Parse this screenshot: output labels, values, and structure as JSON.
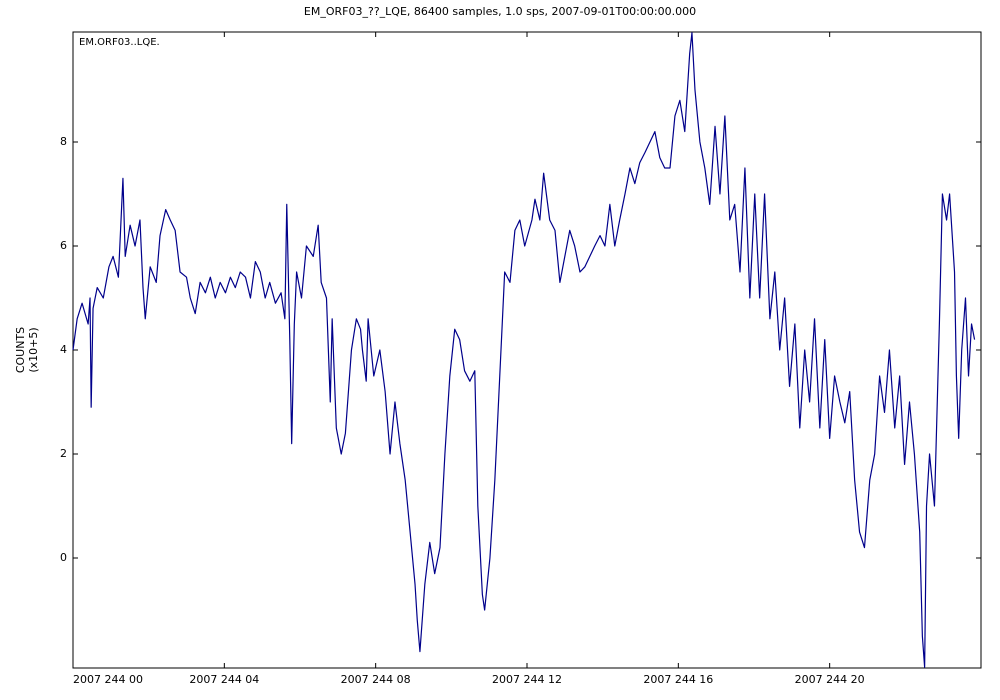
{
  "chart_data": {
    "type": "line",
    "title": "EM_ORF03_??_LQE, 86400 samples, 1.0 sps, 2007-09-01T00:00:00.000",
    "annotation": "EM.ORF03..LQE.",
    "ylabel": "COUNTS",
    "ylabel_unit": "(x10+5)",
    "color": "#00008b",
    "xlim": [
      0,
      24
    ],
    "ylim": [
      -2.115,
      10.115
    ],
    "yticks": [
      0,
      2,
      4,
      6,
      8
    ],
    "xticks": [
      {
        "value": 0,
        "label": "2007 244 00"
      },
      {
        "value": 4,
        "label": "2007 244 04"
      },
      {
        "value": 8,
        "label": "2007 244 08"
      },
      {
        "value": 12,
        "label": "2007 244 12"
      },
      {
        "value": 16,
        "label": "2007 244 16"
      },
      {
        "value": 20,
        "label": "2007 244 20"
      }
    ],
    "x": [
      0.0,
      0.11,
      0.24,
      0.4,
      0.45,
      0.48,
      0.53,
      0.64,
      0.8,
      0.95,
      1.06,
      1.2,
      1.32,
      1.38,
      1.51,
      1.64,
      1.77,
      1.85,
      1.91,
      2.04,
      2.2,
      2.3,
      2.45,
      2.57,
      2.7,
      2.83,
      3.0,
      3.1,
      3.23,
      3.36,
      3.5,
      3.63,
      3.76,
      3.89,
      4.03,
      4.16,
      4.29,
      4.42,
      4.56,
      4.69,
      4.82,
      4.95,
      5.08,
      5.2,
      5.35,
      5.5,
      5.6,
      5.65,
      5.73,
      5.78,
      5.85,
      5.91,
      6.04,
      6.17,
      6.35,
      6.48,
      6.56,
      6.7,
      6.8,
      6.85,
      6.96,
      7.09,
      7.2,
      7.36,
      7.49,
      7.6,
      7.65,
      7.75,
      7.8,
      7.95,
      8.11,
      8.25,
      8.38,
      8.51,
      8.64,
      8.78,
      8.91,
      9.04,
      9.1,
      9.17,
      9.3,
      9.43,
      9.56,
      9.7,
      9.83,
      9.96,
      10.09,
      10.22,
      10.35,
      10.49,
      10.62,
      10.7,
      10.82,
      10.88,
      11.02,
      11.15,
      11.28,
      11.41,
      11.55,
      11.68,
      11.81,
      11.94,
      12.13,
      12.21,
      12.34,
      12.44,
      12.6,
      12.74,
      12.87,
      13.0,
      13.13,
      13.26,
      13.4,
      13.53,
      13.66,
      13.79,
      13.93,
      14.06,
      14.19,
      14.32,
      14.45,
      14.59,
      14.72,
      14.85,
      14.98,
      15.12,
      15.25,
      15.38,
      15.51,
      15.64,
      15.78,
      15.91,
      16.04,
      16.17,
      16.3,
      16.36,
      16.44,
      16.57,
      16.7,
      16.83,
      16.97,
      17.1,
      17.23,
      17.36,
      17.49,
      17.63,
      17.76,
      17.89,
      18.02,
      18.15,
      18.28,
      18.42,
      18.55,
      18.68,
      18.81,
      18.94,
      19.08,
      19.21,
      19.34,
      19.47,
      19.6,
      19.74,
      19.87,
      20.0,
      20.13,
      20.27,
      20.4,
      20.53,
      20.66,
      20.79,
      20.92,
      21.06,
      21.19,
      21.32,
      21.45,
      21.58,
      21.72,
      21.85,
      21.98,
      22.11,
      22.24,
      22.38,
      22.45,
      22.51,
      22.56,
      22.64,
      22.77,
      22.9,
      22.98,
      23.09,
      23.17,
      23.3,
      23.35,
      23.41,
      23.49,
      23.59,
      23.67,
      23.75,
      23.83
    ],
    "values": [
      4.0,
      4.6,
      4.9,
      4.5,
      5.0,
      2.9,
      4.8,
      5.2,
      5.0,
      5.6,
      5.8,
      5.4,
      7.3,
      5.8,
      6.4,
      6.0,
      6.5,
      5.2,
      4.6,
      5.6,
      5.3,
      6.2,
      6.7,
      6.5,
      6.3,
      5.5,
      5.4,
      5.0,
      4.7,
      5.3,
      5.1,
      5.4,
      5.0,
      5.3,
      5.1,
      5.4,
      5.2,
      5.5,
      5.4,
      5.0,
      5.7,
      5.5,
      5.0,
      5.3,
      4.9,
      5.1,
      4.6,
      6.8,
      4.2,
      2.2,
      4.5,
      5.5,
      5.0,
      6.0,
      5.8,
      6.4,
      5.3,
      5.0,
      3.0,
      4.6,
      2.5,
      2.0,
      2.4,
      4.0,
      4.6,
      4.4,
      4.0,
      3.4,
      4.6,
      3.5,
      4.0,
      3.2,
      2.0,
      3.0,
      2.2,
      1.5,
      0.5,
      -0.5,
      -1.2,
      -1.8,
      -0.5,
      0.3,
      -0.3,
      0.2,
      2.0,
      3.5,
      4.4,
      4.2,
      3.6,
      3.4,
      3.6,
      1.0,
      -0.7,
      -1.0,
      0.0,
      1.5,
      3.5,
      5.5,
      5.3,
      6.3,
      6.5,
      6.0,
      6.5,
      6.9,
      6.5,
      7.4,
      6.5,
      6.3,
      5.3,
      5.8,
      6.3,
      6.0,
      5.5,
      5.6,
      5.8,
      6.0,
      6.2,
      6.0,
      6.8,
      6.0,
      6.5,
      7.0,
      7.5,
      7.2,
      7.6,
      7.8,
      8.0,
      8.2,
      7.7,
      7.5,
      7.5,
      8.5,
      8.8,
      8.2,
      9.7,
      10.1,
      9.0,
      8.0,
      7.5,
      6.8,
      8.3,
      7.0,
      8.5,
      6.5,
      6.8,
      5.5,
      7.5,
      5.0,
      7.0,
      5.0,
      7.0,
      4.6,
      5.5,
      4.0,
      5.0,
      3.3,
      4.5,
      2.5,
      4.0,
      3.0,
      4.6,
      2.5,
      4.2,
      2.3,
      3.5,
      3.0,
      2.6,
      3.2,
      1.5,
      0.5,
      0.2,
      1.5,
      2.0,
      3.5,
      2.8,
      4.0,
      2.5,
      3.5,
      1.8,
      3.0,
      2.0,
      0.5,
      -1.5,
      -2.1,
      1.0,
      2.0,
      1.0,
      4.5,
      7.0,
      6.5,
      7.0,
      5.5,
      3.5,
      2.3,
      4.0,
      5.0,
      3.5,
      4.5,
      4.2
    ]
  }
}
